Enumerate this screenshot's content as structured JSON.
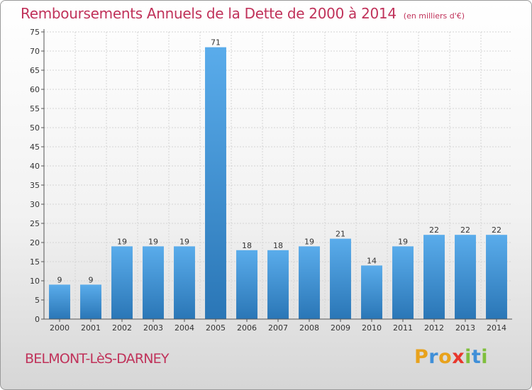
{
  "header": {
    "title": "Remboursements Annuels de la Dette de 2000 à 2014",
    "subtitle": "(en milliers d'€)"
  },
  "footer": {
    "commune": "BELMONT-LèS-DARNEY",
    "logo_letters": [
      "P",
      "r",
      "o",
      "x",
      "i",
      "t",
      "i"
    ],
    "logo_colors": [
      "#e8a21c",
      "#3f8fd8",
      "#e8a21c",
      "#e8372c",
      "#7fbf3c",
      "#3f8fd8",
      "#7fbf3c"
    ]
  },
  "colors": {
    "bar_top": "#5aaceb",
    "bar_bottom": "#2a76b6",
    "accent": "#c0325a"
  },
  "chart_data": {
    "type": "bar",
    "categories": [
      "2000",
      "2001",
      "2002",
      "2003",
      "2004",
      "2005",
      "2006",
      "2007",
      "2008",
      "2009",
      "2010",
      "2011",
      "2012",
      "2013",
      "2014"
    ],
    "values": [
      9,
      9,
      19,
      19,
      19,
      71,
      18,
      18,
      19,
      21,
      14,
      19,
      22,
      22,
      22
    ],
    "ylim": [
      0,
      75
    ],
    "yticks": [
      0,
      5,
      10,
      15,
      20,
      25,
      30,
      35,
      40,
      45,
      50,
      55,
      60,
      65,
      70,
      75
    ],
    "grid": true
  }
}
